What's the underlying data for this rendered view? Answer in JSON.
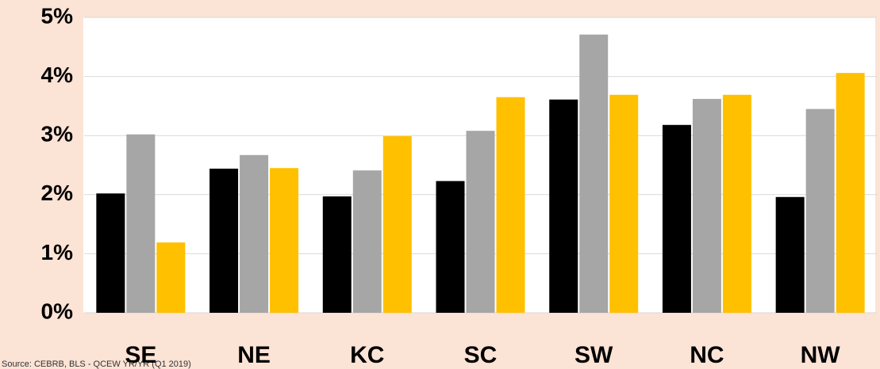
{
  "chart_data": {
    "type": "bar",
    "categories": [
      "SE",
      "NE",
      "KC",
      "SC",
      "SW",
      "NC",
      "NW"
    ],
    "series": [
      {
        "color": "#000000",
        "values": [
          2.02,
          2.44,
          1.97,
          2.23,
          3.61,
          3.18,
          1.96
        ]
      },
      {
        "color": "#a6a6a6",
        "values": [
          3.02,
          2.67,
          2.41,
          3.08,
          4.71,
          3.62,
          3.45
        ]
      },
      {
        "color": "#ffc000",
        "values": [
          1.19,
          2.45,
          2.99,
          3.65,
          3.69,
          3.69,
          4.06
        ]
      }
    ],
    "ylim": [
      0,
      5
    ],
    "yticks": [
      {
        "value": 0,
        "label": "0%"
      },
      {
        "value": 1,
        "label": "1%"
      },
      {
        "value": 2,
        "label": "2%"
      },
      {
        "value": 3,
        "label": "3%"
      },
      {
        "value": 4,
        "label": "4%"
      },
      {
        "value": 5,
        "label": "5%"
      }
    ],
    "grid": true,
    "source": "Source: CEBRB, BLS - QCEW YR/YR (Q1 2019)"
  }
}
